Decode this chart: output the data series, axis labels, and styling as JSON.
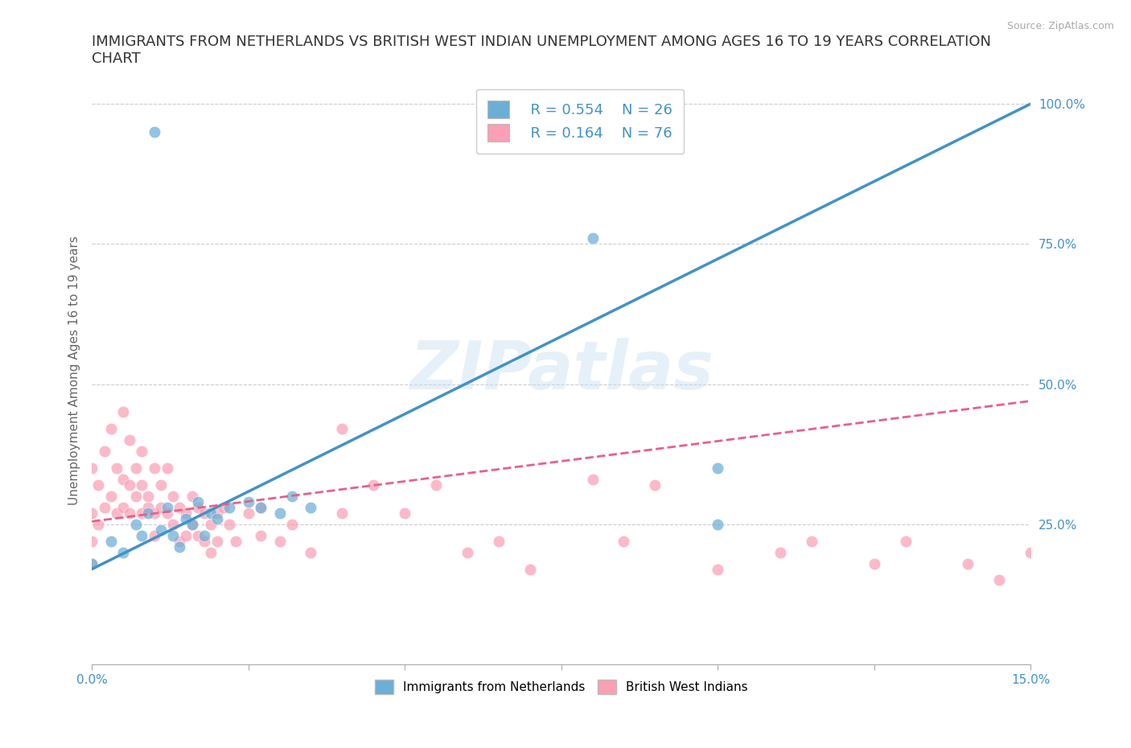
{
  "title": "IMMIGRANTS FROM NETHERLANDS VS BRITISH WEST INDIAN UNEMPLOYMENT AMONG AGES 16 TO 19 YEARS CORRELATION\nCHART",
  "source_text": "Source: ZipAtlas.com",
  "ylabel": "Unemployment Among Ages 16 to 19 years",
  "xlim": [
    0.0,
    0.15
  ],
  "ylim": [
    0.0,
    1.05
  ],
  "yticks_right": [
    0.0,
    0.25,
    0.5,
    0.75,
    1.0
  ],
  "ytick_right_labels": [
    "",
    "25.0%",
    "50.0%",
    "75.0%",
    "100.0%"
  ],
  "watermark": "ZIPatlas",
  "legend_R1": "R = 0.554",
  "legend_N1": "N = 26",
  "legend_R2": "R = 0.164",
  "legend_N2": "N = 76",
  "color_netherlands": "#6baed6",
  "color_bwi": "#fa9fb5",
  "color_line_netherlands": "#4292c6",
  "color_line_bwi": "#e8608a",
  "blue_line_x0": 0.0,
  "blue_line_y0": 0.17,
  "blue_line_x1": 0.15,
  "blue_line_y1": 1.0,
  "pink_line_x0": 0.0,
  "pink_line_y0": 0.255,
  "pink_line_x1": 0.15,
  "pink_line_y1": 0.47,
  "blue_x": [
    0.0,
    0.003,
    0.005,
    0.007,
    0.008,
    0.009,
    0.01,
    0.011,
    0.012,
    0.013,
    0.014,
    0.015,
    0.016,
    0.017,
    0.018,
    0.019,
    0.02,
    0.022,
    0.025,
    0.027,
    0.03,
    0.032,
    0.035,
    0.08,
    0.1,
    0.1
  ],
  "blue_y": [
    0.18,
    0.22,
    0.2,
    0.25,
    0.23,
    0.27,
    0.95,
    0.24,
    0.28,
    0.23,
    0.21,
    0.26,
    0.25,
    0.29,
    0.23,
    0.27,
    0.26,
    0.28,
    0.29,
    0.28,
    0.27,
    0.3,
    0.28,
    0.76,
    0.35,
    0.25
  ],
  "pink_x": [
    0.0,
    0.0,
    0.0,
    0.001,
    0.001,
    0.002,
    0.002,
    0.003,
    0.003,
    0.004,
    0.004,
    0.005,
    0.005,
    0.005,
    0.006,
    0.006,
    0.006,
    0.007,
    0.007,
    0.008,
    0.008,
    0.008,
    0.009,
    0.009,
    0.01,
    0.01,
    0.01,
    0.011,
    0.011,
    0.012,
    0.012,
    0.013,
    0.013,
    0.014,
    0.014,
    0.015,
    0.015,
    0.016,
    0.016,
    0.017,
    0.017,
    0.018,
    0.018,
    0.019,
    0.019,
    0.02,
    0.02,
    0.021,
    0.022,
    0.023,
    0.025,
    0.027,
    0.027,
    0.03,
    0.032,
    0.035,
    0.04,
    0.04,
    0.045,
    0.05,
    0.055,
    0.06,
    0.065,
    0.07,
    0.08,
    0.085,
    0.09,
    0.1,
    0.11,
    0.115,
    0.125,
    0.13,
    0.14,
    0.145,
    0.15,
    0.0
  ],
  "pink_y": [
    0.22,
    0.27,
    0.35,
    0.25,
    0.32,
    0.28,
    0.38,
    0.3,
    0.42,
    0.27,
    0.35,
    0.33,
    0.28,
    0.45,
    0.32,
    0.4,
    0.27,
    0.35,
    0.3,
    0.32,
    0.27,
    0.38,
    0.3,
    0.28,
    0.35,
    0.27,
    0.23,
    0.32,
    0.28,
    0.35,
    0.27,
    0.3,
    0.25,
    0.28,
    0.22,
    0.27,
    0.23,
    0.3,
    0.25,
    0.28,
    0.23,
    0.27,
    0.22,
    0.25,
    0.2,
    0.27,
    0.22,
    0.28,
    0.25,
    0.22,
    0.27,
    0.28,
    0.23,
    0.22,
    0.25,
    0.2,
    0.42,
    0.27,
    0.32,
    0.27,
    0.32,
    0.2,
    0.22,
    0.17,
    0.33,
    0.22,
    0.32,
    0.17,
    0.2,
    0.22,
    0.18,
    0.22,
    0.18,
    0.15,
    0.2,
    0.18
  ]
}
